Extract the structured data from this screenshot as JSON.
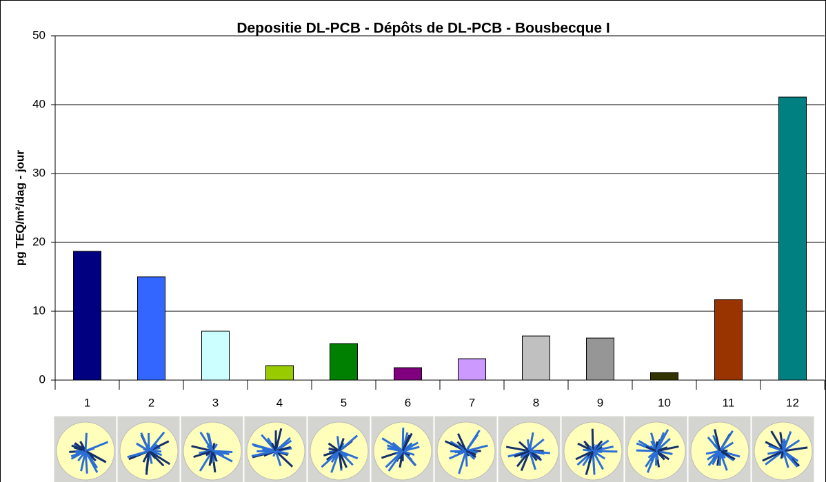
{
  "chart_data": {
    "type": "bar",
    "title": "Depositie DL-PCB - Dépôts de DL-PCB - Bousbecque I",
    "y_label": "pg TEQ/m²/dag - jour",
    "categories": [
      "1",
      "2",
      "3",
      "4",
      "5",
      "6",
      "7",
      "8",
      "9",
      "10",
      "11",
      "12"
    ],
    "values": [
      18.7,
      15.0,
      7.1,
      2.1,
      5.3,
      1.8,
      3.1,
      6.4,
      6.1,
      1.1,
      11.7,
      41.1
    ],
    "colors": [
      "#000080",
      "#3366ff",
      "#ccffff",
      "#99cc00",
      "#008000",
      "#800080",
      "#cc99ff",
      "#c0c0c0",
      "#969696",
      "#333300",
      "#993300",
      "#008080"
    ],
    "ylim": [
      0,
      50
    ],
    "yticks": [
      0,
      10,
      20,
      30,
      40,
      50
    ],
    "grid": true
  }
}
